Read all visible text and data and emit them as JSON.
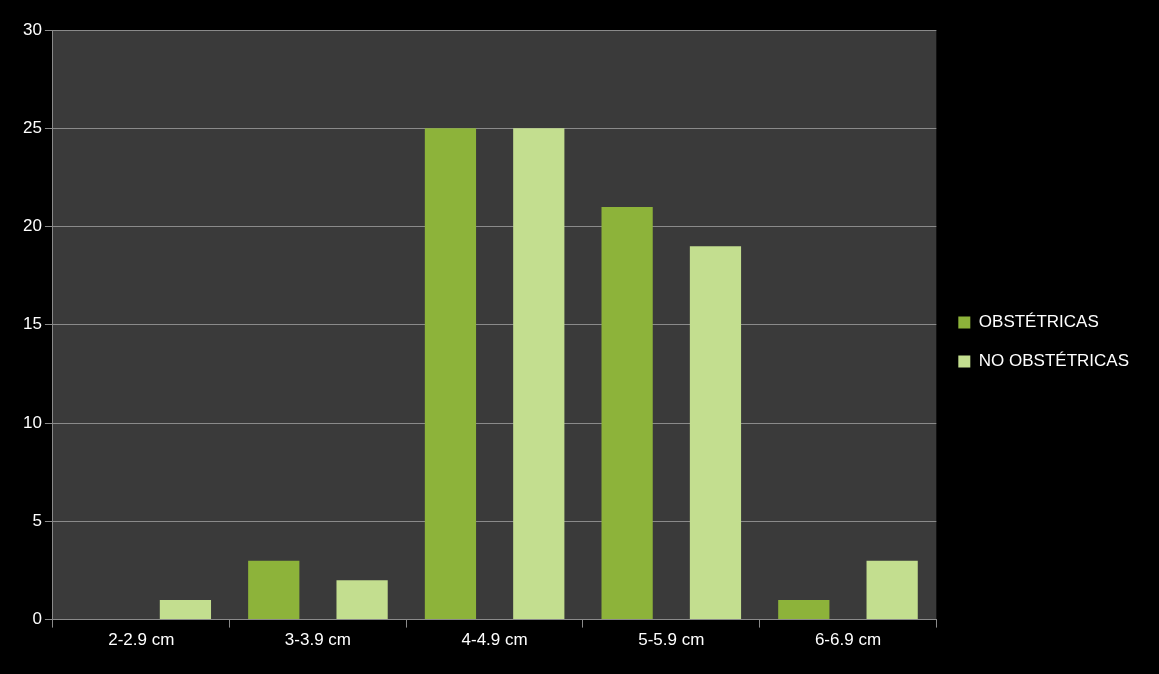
{
  "chart_data": {
    "type": "bar",
    "categories": [
      "2-2.9 cm",
      "3-3.9 cm",
      "4-4.9 cm",
      "5-5.9 cm",
      "6-6.9 cm"
    ],
    "series": [
      {
        "name": "OBSTÉTRICAS",
        "color": "#8db33a",
        "values": [
          0,
          3,
          25,
          21,
          1
        ]
      },
      {
        "name": "NO OBSTÉTRICAS",
        "color": "#c3de8f",
        "values": [
          1,
          2,
          25,
          19,
          3
        ]
      }
    ],
    "ylim": [
      0,
      30
    ],
    "yticks": [
      0,
      5,
      10,
      15,
      20,
      25,
      30
    ],
    "grid": "y",
    "legend": "right"
  }
}
